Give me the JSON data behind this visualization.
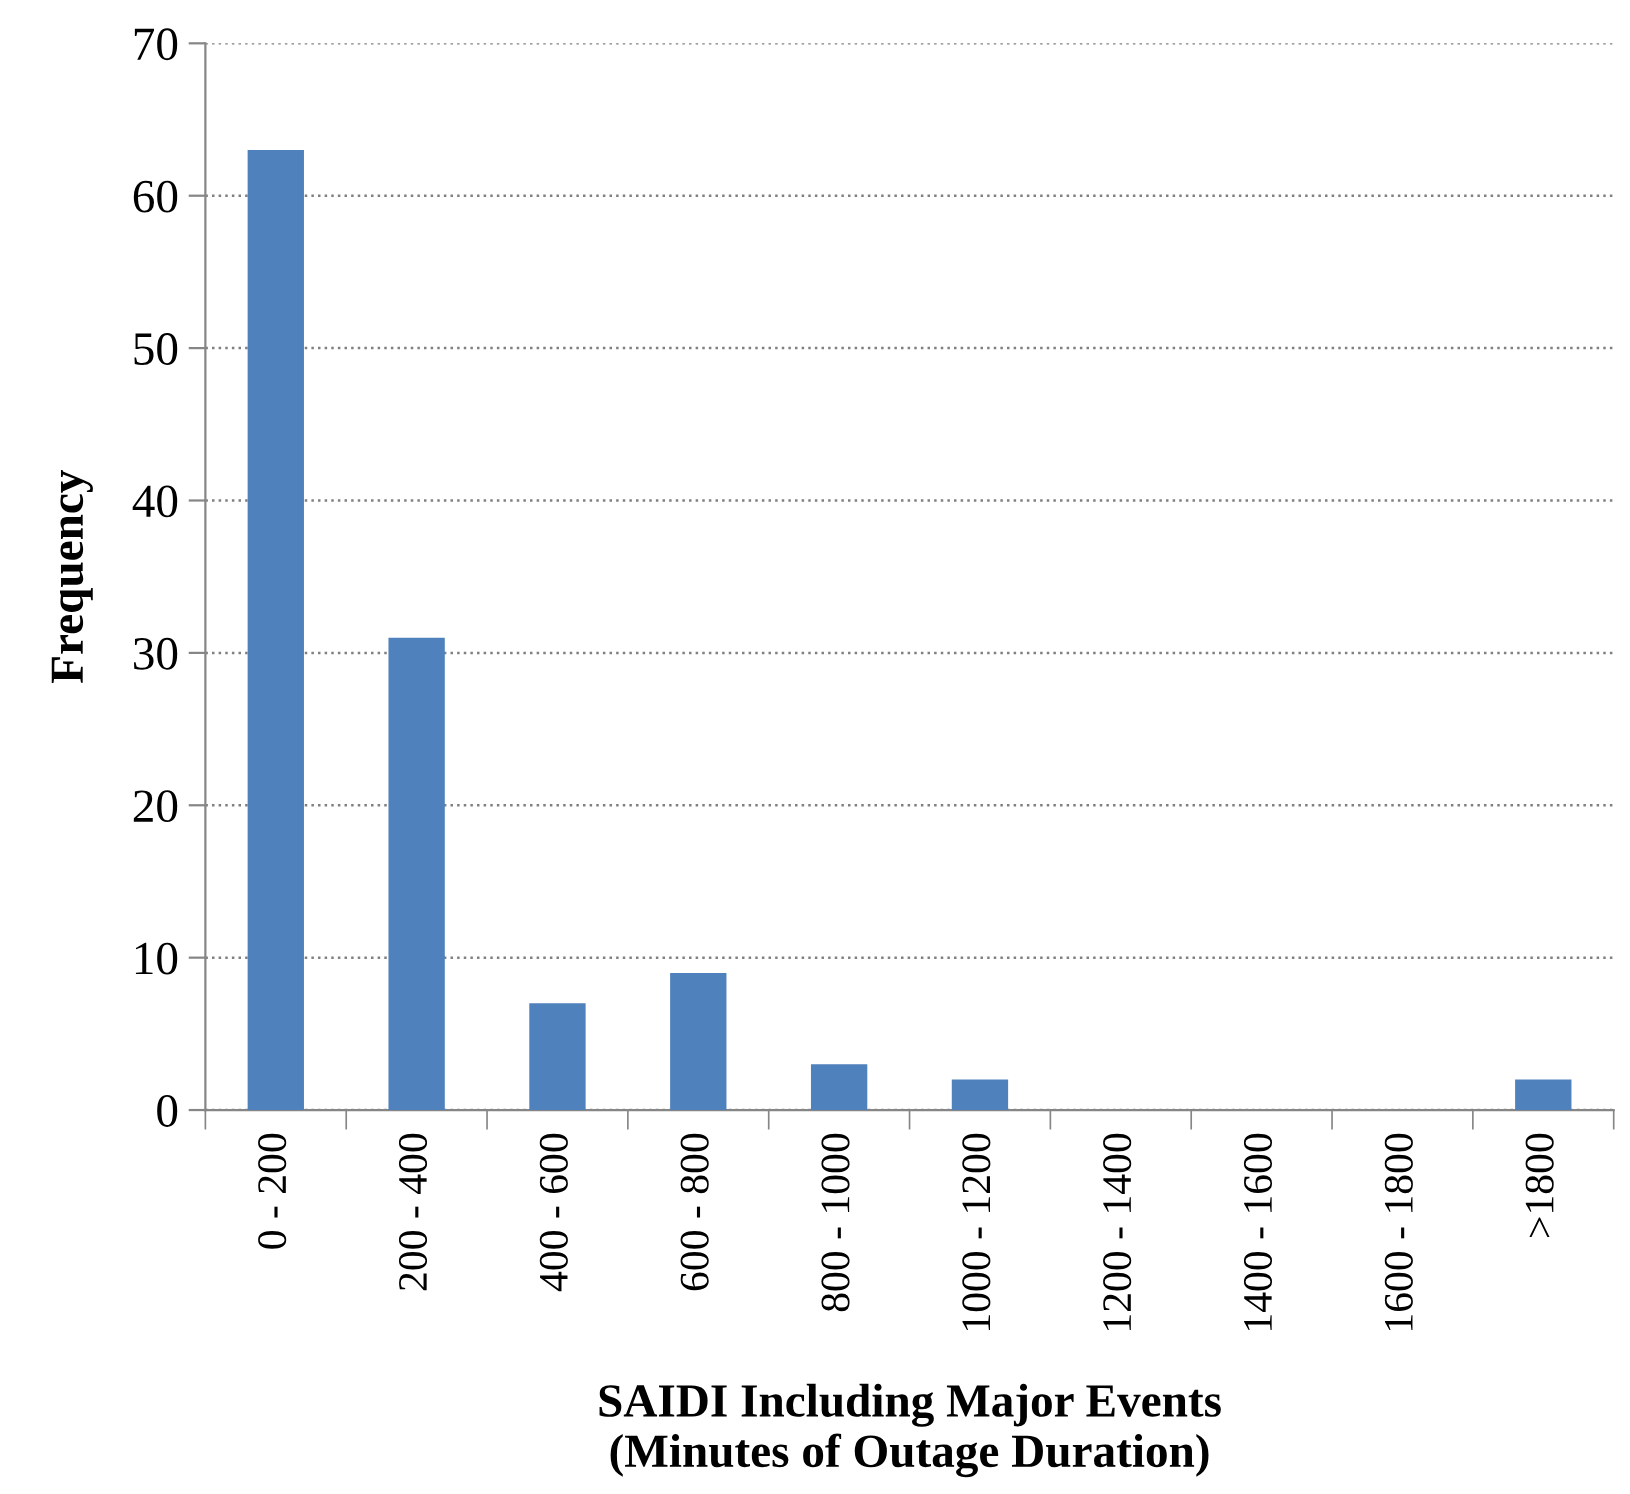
{
  "chart_data": {
    "type": "bar",
    "xlabel": "SAIDI Including Major Events\n(Minutes of Outage Duration)",
    "ylabel": "Frequency",
    "categories": [
      "0 - 200",
      "200 - 400",
      "400 - 600",
      "600 - 800",
      "800 - 1000",
      "1000 - 1200",
      "1200 - 1400",
      "1400 - 1600",
      "1600 - 1800",
      ">1800"
    ],
    "values": [
      63,
      31,
      7,
      9,
      3,
      2,
      0,
      0,
      0,
      2
    ],
    "color": "#4f81bd",
    "ylim": [
      0,
      70
    ],
    "yticks": [
      0,
      10,
      20,
      30,
      40,
      50,
      60,
      70
    ],
    "grid": "y",
    "legend": false
  }
}
